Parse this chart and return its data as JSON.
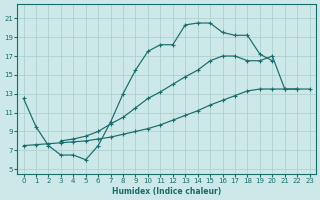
{
  "xlabel": "Humidex (Indice chaleur)",
  "bg_color": "#cce8e8",
  "grid_color": "#aacccc",
  "line_color": "#1a6b6b",
  "xlim": [
    -0.5,
    23.5
  ],
  "ylim": [
    4.5,
    22.5
  ],
  "xticks": [
    0,
    1,
    2,
    3,
    4,
    5,
    6,
    7,
    8,
    9,
    10,
    11,
    12,
    13,
    14,
    15,
    16,
    17,
    18,
    19,
    20,
    21,
    22,
    23
  ],
  "yticks": [
    5,
    7,
    9,
    11,
    13,
    15,
    17,
    19,
    21
  ],
  "curve1_x": [
    0,
    1,
    2,
    3,
    4,
    5,
    6,
    7,
    8,
    9,
    10,
    11,
    12,
    13,
    14,
    15,
    16,
    17,
    18,
    19,
    20
  ],
  "curve1_y": [
    12.5,
    9.5,
    7.5,
    6.5,
    6.5,
    6.0,
    7.5,
    10.0,
    13.0,
    15.5,
    17.5,
    18.2,
    18.2,
    20.3,
    20.5,
    20.5,
    19.5,
    19.2,
    19.2,
    17.2,
    16.5
  ],
  "curve2_x": [
    3,
    4,
    5,
    6,
    7,
    8,
    9,
    10,
    11,
    12,
    13,
    14,
    15,
    16,
    17,
    18,
    19,
    20,
    21,
    22
  ],
  "curve2_y": [
    8.0,
    8.2,
    8.5,
    9.0,
    9.8,
    10.5,
    11.5,
    12.5,
    13.2,
    14.0,
    14.8,
    15.5,
    16.5,
    17.0,
    17.0,
    16.5,
    16.5,
    17.0,
    13.5,
    13.5
  ],
  "curve3_x": [
    0,
    1,
    2,
    3,
    4,
    5,
    6,
    7,
    8,
    9,
    10,
    11,
    12,
    13,
    14,
    15,
    16,
    17,
    18,
    19,
    20,
    21,
    22,
    23
  ],
  "curve3_y": [
    7.5,
    7.6,
    7.7,
    7.8,
    7.9,
    8.0,
    8.2,
    8.4,
    8.7,
    9.0,
    9.3,
    9.7,
    10.2,
    10.7,
    11.2,
    11.8,
    12.3,
    12.8,
    13.3,
    13.5,
    13.5,
    13.5,
    13.5,
    13.5
  ]
}
